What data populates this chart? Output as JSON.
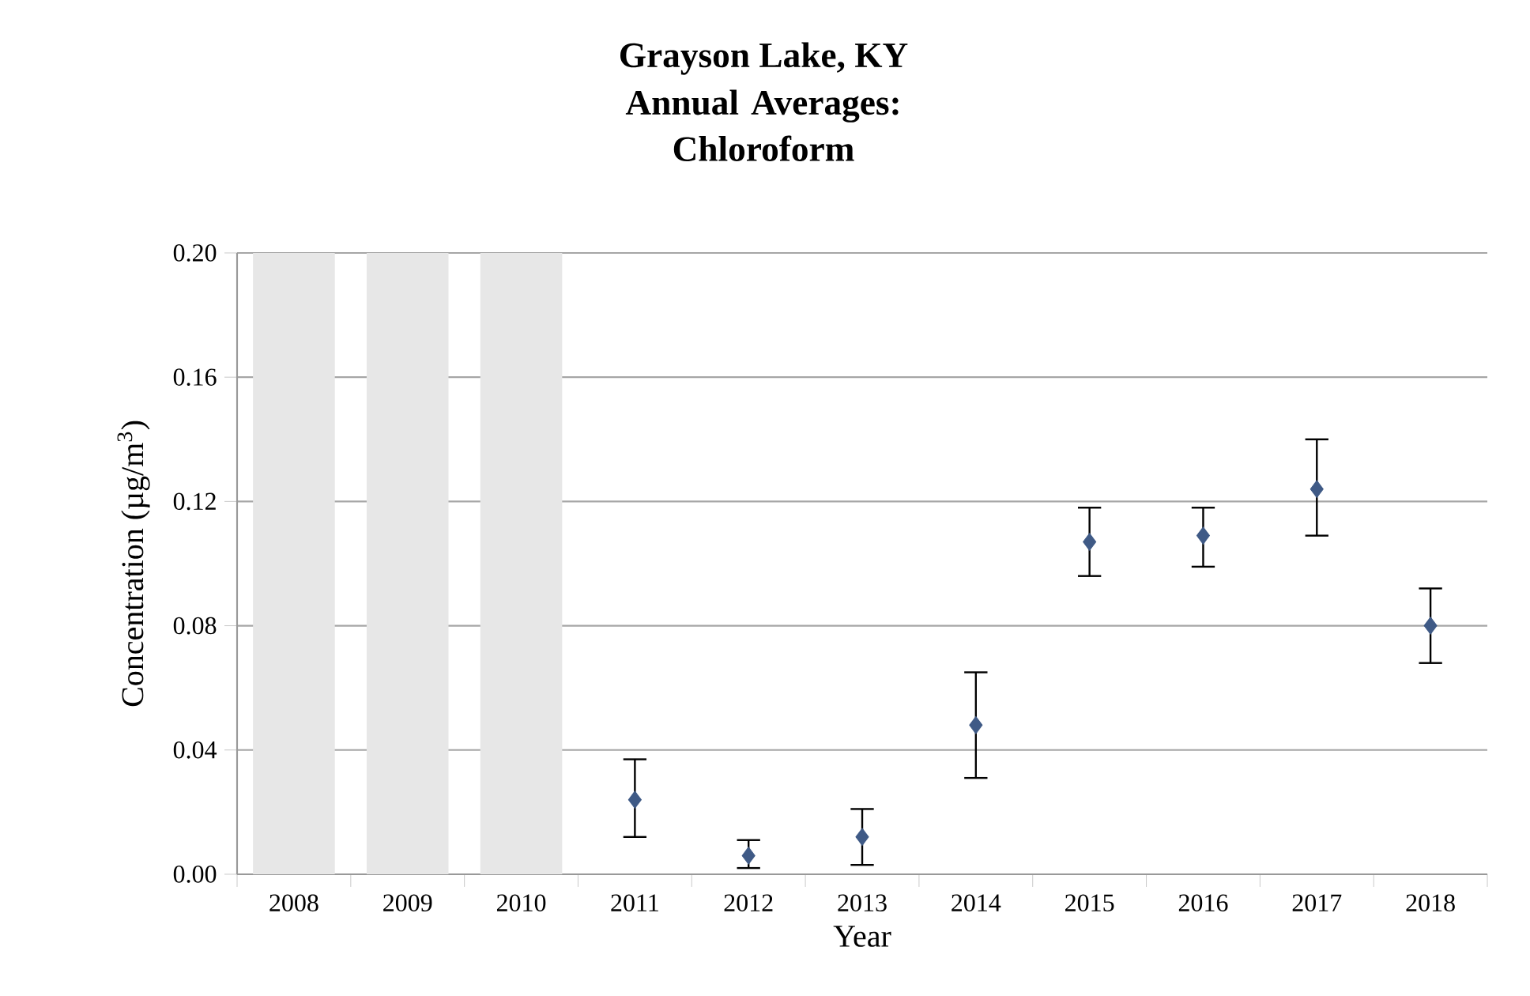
{
  "chart_data": {
    "type": "scatter",
    "title": "Grayson Lake, KY",
    "subtitle": "Annual Averages: Chloroform",
    "xlabel": "Year",
    "ylabel": "Concentration (µg/m$^{3}$)",
    "categories": [
      "2008",
      "2009",
      "2010",
      "2011",
      "2012",
      "2013",
      "2014",
      "2015",
      "2016",
      "2017",
      "2018"
    ],
    "series": [
      {
        "type": "bar",
        "color": "#e7e7e7",
        "values": [
          0.2,
          0.2,
          0.2,
          null,
          null,
          null,
          null,
          null,
          null,
          null,
          null
        ]
      },
      {
        "color": "#3f5a86",
        "values": [
          null,
          null,
          null,
          0.024,
          0.006,
          0.012,
          0.048,
          0.107,
          0.109,
          0.124,
          0.08
        ],
        "errors": [
          null,
          null,
          null,
          [
            0.012,
            0.037
          ],
          [
            0.002,
            0.011
          ],
          [
            0.003,
            0.021
          ],
          [
            0.031,
            0.065
          ],
          [
            0.096,
            0.118
          ],
          [
            0.099,
            0.118
          ],
          [
            0.109,
            0.14
          ],
          [
            0.068,
            0.092
          ]
        ]
      }
    ],
    "ylim": [
      0,
      0.2
    ],
    "yticks": [
      {
        "value": 0,
        "label": "0.00"
      },
      {
        "value": 0.04,
        "label": "0.04"
      },
      {
        "value": 0.08,
        "label": "0.08"
      },
      {
        "value": 0.12,
        "label": "0.12"
      },
      {
        "value": 0.16,
        "label": "0.16"
      },
      {
        "value": 0.2,
        "label": "0.20"
      }
    ],
    "grid": "y",
    "marker": "diamond"
  }
}
